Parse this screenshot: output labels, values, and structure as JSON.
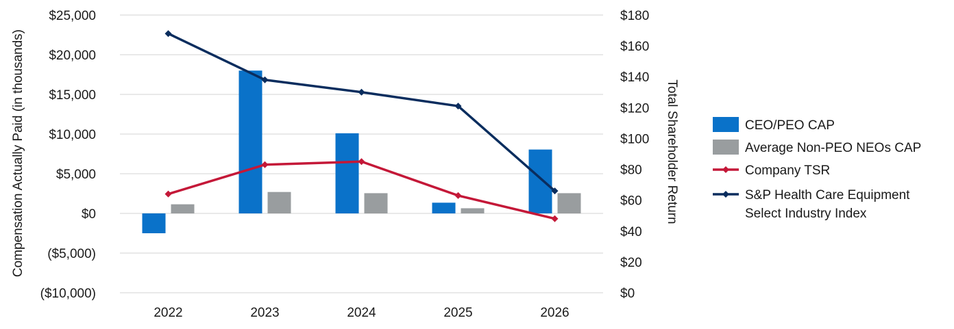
{
  "chart_data": {
    "type": "bar",
    "categories": [
      "2022",
      "2023",
      "2024",
      "2025",
      "2026"
    ],
    "bar_series": [
      {
        "name": "CEO/PEO CAP",
        "values": [
          -2500,
          18000,
          10100,
          1350,
          8050
        ],
        "color": "#0a72c9"
      },
      {
        "name": "Average Non-PEO NEOs CAP",
        "values": [
          1150,
          2700,
          2550,
          650,
          2550
        ],
        "color": "#999d9f"
      }
    ],
    "line_series": [
      {
        "name": "Company TSR",
        "values": [
          64,
          83,
          85,
          63,
          48
        ],
        "color": "#c41838"
      },
      {
        "name": "S&P Health Care Equipment Select Industry Index",
        "name_lines": [
          "S&P Health Care Equipment",
          "Select Industry Index"
        ],
        "values": [
          168,
          138,
          130,
          121,
          66
        ],
        "color": "#0a2d5e"
      }
    ],
    "ylabel": "Compensation Actually Paid (in thousands)",
    "y2label": "Total Shareholder Return",
    "ylim": [
      -10000,
      25000
    ],
    "y2lim": [
      0,
      180
    ],
    "yticks": [
      "$25,000",
      "$20,000",
      "$15,000",
      "$10,000",
      "$5,000",
      "$0",
      "($5,000)",
      "($10,000)"
    ],
    "y2ticks": [
      "$180",
      "$160",
      "$140",
      "$120",
      "$100",
      "$80",
      "$60",
      "$40",
      "$20",
      "$0"
    ],
    "grid": true,
    "legend_position": "right"
  }
}
